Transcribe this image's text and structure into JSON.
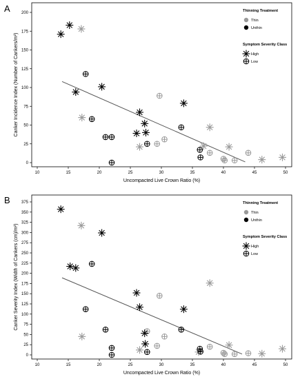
{
  "colors": {
    "thin": "#999999",
    "unthin": "#000000",
    "trend": "#555555"
  },
  "chart_data": [
    {
      "type": "scatter",
      "panel_label": "A",
      "xlabel": "Uncompacted Live Crown Ratio (%)",
      "ylabel": "Canker Incidence Index (Number of Cankers/m²)",
      "xlim": [
        10,
        50
      ],
      "ylim": [
        0,
        200
      ],
      "x_ticks": [
        10,
        15,
        20,
        25,
        30,
        35,
        40,
        45,
        50
      ],
      "y_ticks": [
        0,
        25,
        50,
        75,
        100,
        125,
        150,
        175,
        200
      ],
      "grid": false,
      "legend_position": "top-right",
      "legend": {
        "treatment_title": "Thinning Treatment",
        "treatment_items": [
          "Thin",
          "Unthin"
        ],
        "severity_title": "Symptom Severity Class",
        "severity_items": [
          "High",
          "Low"
        ]
      },
      "trend_line": [
        [
          14,
          108
        ],
        [
          43.5,
          1
        ]
      ],
      "points": [
        {
          "x": 13.8,
          "y": 171,
          "severity": "High",
          "treatment": "Unthin"
        },
        {
          "x": 15.2,
          "y": 183,
          "severity": "High",
          "treatment": "Unthin"
        },
        {
          "x": 16.2,
          "y": 94,
          "severity": "High",
          "treatment": "Unthin"
        },
        {
          "x": 17.1,
          "y": 178,
          "severity": "High",
          "treatment": "Thin"
        },
        {
          "x": 17.2,
          "y": 60,
          "severity": "High",
          "treatment": "Thin"
        },
        {
          "x": 17.8,
          "y": 118,
          "severity": "Low",
          "treatment": "Unthin"
        },
        {
          "x": 18.8,
          "y": 58,
          "severity": "Low",
          "treatment": "Unthin"
        },
        {
          "x": 20.4,
          "y": 101,
          "severity": "High",
          "treatment": "Unthin"
        },
        {
          "x": 21.0,
          "y": 34,
          "severity": "Low",
          "treatment": "Unthin"
        },
        {
          "x": 22.0,
          "y": 34,
          "severity": "Low",
          "treatment": "Unthin"
        },
        {
          "x": 22.0,
          "y": 0,
          "severity": "Low",
          "treatment": "Unthin"
        },
        {
          "x": 26.0,
          "y": 39,
          "severity": "High",
          "treatment": "Unthin"
        },
        {
          "x": 26.5,
          "y": 67,
          "severity": "High",
          "treatment": "Unthin"
        },
        {
          "x": 26.5,
          "y": 21,
          "severity": "High",
          "treatment": "Thin"
        },
        {
          "x": 27.3,
          "y": 52,
          "severity": "High",
          "treatment": "Unthin"
        },
        {
          "x": 27.5,
          "y": 40,
          "severity": "High",
          "treatment": "Unthin"
        },
        {
          "x": 27.7,
          "y": 25,
          "severity": "Low",
          "treatment": "Unthin"
        },
        {
          "x": 29.3,
          "y": 25,
          "severity": "Low",
          "treatment": "Thin"
        },
        {
          "x": 29.7,
          "y": 89,
          "severity": "Low",
          "treatment": "Thin"
        },
        {
          "x": 30.5,
          "y": 31,
          "severity": "Low",
          "treatment": "Thin"
        },
        {
          "x": 33.2,
          "y": 47,
          "severity": "Low",
          "treatment": "Unthin"
        },
        {
          "x": 33.6,
          "y": 79,
          "severity": "High",
          "treatment": "Unthin"
        },
        {
          "x": 36.2,
          "y": 17,
          "severity": "Low",
          "treatment": "Unthin"
        },
        {
          "x": 36.3,
          "y": 7,
          "severity": "Low",
          "treatment": "Unthin"
        },
        {
          "x": 36.8,
          "y": 22,
          "severity": "High",
          "treatment": "Thin"
        },
        {
          "x": 37.8,
          "y": 13,
          "severity": "Low",
          "treatment": "Thin"
        },
        {
          "x": 37.8,
          "y": 47,
          "severity": "High",
          "treatment": "Thin"
        },
        {
          "x": 40.0,
          "y": 5,
          "severity": "Low",
          "treatment": "Thin"
        },
        {
          "x": 40.2,
          "y": 3,
          "severity": "Low",
          "treatment": "Thin"
        },
        {
          "x": 40.9,
          "y": 21,
          "severity": "High",
          "treatment": "Thin"
        },
        {
          "x": 41.8,
          "y": 3,
          "severity": "Low",
          "treatment": "Thin"
        },
        {
          "x": 44.0,
          "y": 13,
          "severity": "Low",
          "treatment": "Thin"
        },
        {
          "x": 46.2,
          "y": 4,
          "severity": "High",
          "treatment": "Thin"
        },
        {
          "x": 49.5,
          "y": 7,
          "severity": "High",
          "treatment": "Thin"
        }
      ]
    },
    {
      "type": "scatter",
      "panel_label": "B",
      "xlabel": "Uncompacted Live Crown Ratio (%)",
      "ylabel": "Canker Severity Index (Width of Cankers (cm)/m²)",
      "xlim": [
        10,
        50
      ],
      "ylim": [
        0,
        375
      ],
      "x_ticks": [
        10,
        15,
        20,
        25,
        30,
        35,
        40,
        45,
        50
      ],
      "y_ticks": [
        0,
        25,
        50,
        75,
        100,
        125,
        150,
        175,
        200,
        225,
        250,
        275,
        300,
        325,
        350,
        375
      ],
      "grid": false,
      "legend_position": "top-right",
      "legend": {
        "treatment_title": "Thinning Treatment",
        "treatment_items": [
          "Thin",
          "Unthin"
        ],
        "severity_title": "Symptom Severity Class",
        "severity_items": [
          "High",
          "Low"
        ]
      },
      "trend_line": [
        [
          14,
          189
        ],
        [
          43,
          2
        ]
      ],
      "points": [
        {
          "x": 13.8,
          "y": 357,
          "severity": "High",
          "treatment": "Unthin"
        },
        {
          "x": 15.3,
          "y": 217,
          "severity": "High",
          "treatment": "Unthin"
        },
        {
          "x": 16.2,
          "y": 213,
          "severity": "High",
          "treatment": "Unthin"
        },
        {
          "x": 17.1,
          "y": 317,
          "severity": "High",
          "treatment": "Thin"
        },
        {
          "x": 17.2,
          "y": 45,
          "severity": "High",
          "treatment": "Thin"
        },
        {
          "x": 17.8,
          "y": 112,
          "severity": "Low",
          "treatment": "Unthin"
        },
        {
          "x": 18.8,
          "y": 223,
          "severity": "Low",
          "treatment": "Unthin"
        },
        {
          "x": 20.4,
          "y": 299,
          "severity": "High",
          "treatment": "Unthin"
        },
        {
          "x": 21.0,
          "y": 62,
          "severity": "Low",
          "treatment": "Unthin"
        },
        {
          "x": 22.0,
          "y": 17,
          "severity": "Low",
          "treatment": "Unthin"
        },
        {
          "x": 22.0,
          "y": 0,
          "severity": "Low",
          "treatment": "Unthin"
        },
        {
          "x": 26.0,
          "y": 152,
          "severity": "High",
          "treatment": "Unthin"
        },
        {
          "x": 26.5,
          "y": 117,
          "severity": "High",
          "treatment": "Unthin"
        },
        {
          "x": 26.5,
          "y": 12,
          "severity": "High",
          "treatment": "Thin"
        },
        {
          "x": 27.3,
          "y": 53,
          "severity": "High",
          "treatment": "Unthin"
        },
        {
          "x": 27.4,
          "y": 27,
          "severity": "High",
          "treatment": "Unthin"
        },
        {
          "x": 27.7,
          "y": 7,
          "severity": "Low",
          "treatment": "Unthin"
        },
        {
          "x": 27.7,
          "y": 58,
          "severity": "Low",
          "treatment": "Thin"
        },
        {
          "x": 29.3,
          "y": 22,
          "severity": "Low",
          "treatment": "Thin"
        },
        {
          "x": 29.7,
          "y": 145,
          "severity": "Low",
          "treatment": "Thin"
        },
        {
          "x": 30.5,
          "y": 45,
          "severity": "Low",
          "treatment": "Thin"
        },
        {
          "x": 33.2,
          "y": 62,
          "severity": "Low",
          "treatment": "Unthin"
        },
        {
          "x": 33.6,
          "y": 112,
          "severity": "High",
          "treatment": "Unthin"
        },
        {
          "x": 36.2,
          "y": 15,
          "severity": "Low",
          "treatment": "Unthin"
        },
        {
          "x": 36.3,
          "y": 8,
          "severity": "Low",
          "treatment": "Unthin"
        },
        {
          "x": 36.0,
          "y": 7,
          "severity": "High",
          "treatment": "Thin"
        },
        {
          "x": 37.8,
          "y": 20,
          "severity": "Low",
          "treatment": "Thin"
        },
        {
          "x": 37.8,
          "y": 176,
          "severity": "High",
          "treatment": "Thin"
        },
        {
          "x": 40.0,
          "y": 5,
          "severity": "Low",
          "treatment": "Thin"
        },
        {
          "x": 40.2,
          "y": 2,
          "severity": "Low",
          "treatment": "Thin"
        },
        {
          "x": 40.9,
          "y": 24,
          "severity": "High",
          "treatment": "Thin"
        },
        {
          "x": 41.8,
          "y": 2,
          "severity": "Low",
          "treatment": "Thin"
        },
        {
          "x": 44.0,
          "y": 4,
          "severity": "Low",
          "treatment": "Thin"
        },
        {
          "x": 46.2,
          "y": 3,
          "severity": "High",
          "treatment": "Thin"
        },
        {
          "x": 49.5,
          "y": 15,
          "severity": "High",
          "treatment": "Thin"
        }
      ]
    }
  ]
}
